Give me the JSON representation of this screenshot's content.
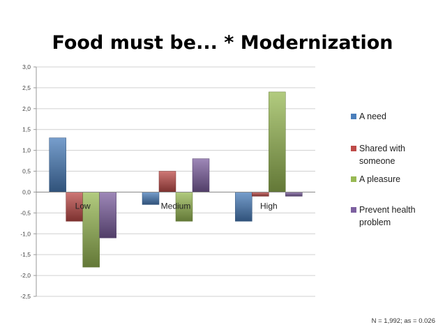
{
  "title": "Food must be... * Modernization",
  "note": "N = 1,992; as = 0.026",
  "chart_data": {
    "type": "bar",
    "title": "Food must be... * Modernization",
    "categories": [
      "Low",
      "Medium",
      "High"
    ],
    "series": [
      {
        "name": "A need",
        "color": "#4a7ebb",
        "values": [
          1.3,
          -0.3,
          -0.7
        ]
      },
      {
        "name": "Shared with someone",
        "color": "#be4b48",
        "values": [
          -0.7,
          0.5,
          -0.1
        ]
      },
      {
        "name": "A pleasure",
        "color": "#98b954",
        "values": [
          -1.8,
          -0.7,
          2.4
        ]
      },
      {
        "name": "Prevent health problem",
        "color": "#7d60a0",
        "values": [
          -1.1,
          0.8,
          -0.1
        ]
      }
    ],
    "ylim": [
      -2.5,
      3.0
    ],
    "yticks": [
      "3,0",
      "2,5",
      "2,0",
      "1,5",
      "1,0",
      "0,5",
      "0,0",
      "-0,5",
      "-1,0",
      "-1,5",
      "-2,0",
      "-2,5"
    ],
    "xlabel": "",
    "ylabel": "",
    "grid": true,
    "legend": "right"
  }
}
